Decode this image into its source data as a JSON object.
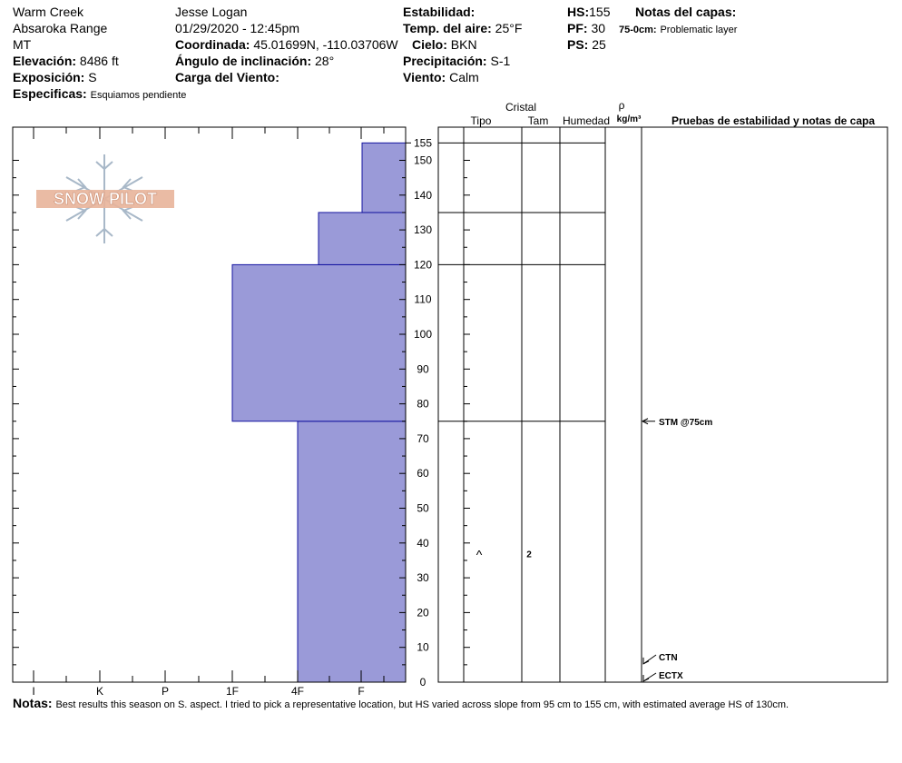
{
  "header": {
    "location": "Warm Creek",
    "range": "Absaroka Range",
    "state": "MT",
    "elevation_label": "Elevación:",
    "elevation": "8486 ft",
    "aspect_label": "Exposición:",
    "aspect": "S",
    "specifics_label": "Especificas:",
    "specifics": "Esquiamos pendiente",
    "observer": "Jesse Logan",
    "datetime": "01/29/2020 - 12:45pm",
    "coord_label": "Coordinada:",
    "coord": "45.01699N, -110.03706W",
    "slope_label": "Ángulo de inclinación:",
    "slope": "28°",
    "wind_load_label": "Carga del Viento:",
    "wind_load": "",
    "stability_label": "Estabilidad:",
    "stability": "",
    "air_temp_label": "Temp. del aire:",
    "air_temp": "25°F",
    "sky_label": "Cielo:",
    "sky": "BKN",
    "precip_label": "Precipitación:",
    "precip": "S-1",
    "wind_label": "Viento:",
    "wind": "Calm",
    "hs_label": "HS:",
    "hs": "155",
    "pf_label": "PF:",
    "pf": "30",
    "ps_label": "PS:",
    "ps": "25",
    "layer_notes_label": "Notas del capas:",
    "layer_note_range": "75-0cm:",
    "layer_note": "Problematic layer"
  },
  "logo": {
    "text": "SNOW PILOT"
  },
  "columns": {
    "crystal": "Cristal",
    "type": "Tipo",
    "size": "Tam",
    "moisture": "Humedad",
    "rho": "ρ",
    "density_unit": "kg/m³",
    "tests": "Pruebas de estabilidad y notas de capa"
  },
  "chart_data": {
    "type": "bar",
    "title": "",
    "ylabel": "",
    "xlabel": "",
    "ylim": [
      0,
      155
    ],
    "hardness_categories": [
      "I",
      "K",
      "P",
      "1F",
      "4F",
      "F"
    ],
    "height_ticks": [
      0,
      10,
      20,
      30,
      40,
      50,
      60,
      70,
      80,
      90,
      100,
      110,
      120,
      130,
      140,
      150
    ],
    "top_label": "155",
    "layers": [
      {
        "bottom": 0,
        "top": 75,
        "hardness": "4F"
      },
      {
        "bottom": 75,
        "top": 120,
        "hardness": "1F"
      },
      {
        "bottom": 120,
        "top": 135,
        "hardness": "4F+"
      },
      {
        "bottom": 135,
        "top": 155,
        "hardness": "F+"
      }
    ],
    "layer_boundaries": [
      155,
      135,
      120,
      75
    ],
    "grain": {
      "height": 37,
      "symbol": "^",
      "size": "2"
    },
    "tests": [
      {
        "height": 75,
        "label": "STM @75cm"
      },
      {
        "height": 5,
        "label": "CTN"
      },
      {
        "height": 0,
        "label": "ECTX"
      }
    ],
    "colors": {
      "fill": "#9a9ad8",
      "edge": "#1414a0"
    }
  },
  "notes": {
    "label": "Notas:",
    "text": "Best results this season on S. aspect. I tried to pick a representative location, but HS varied across slope from 95 cm to 155 cm, with estimated average HS of 130cm."
  }
}
